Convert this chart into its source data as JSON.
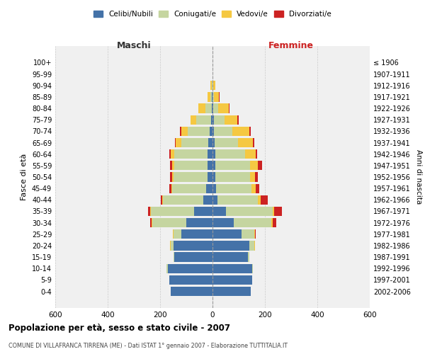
{
  "age_groups": [
    "0-4",
    "5-9",
    "10-14",
    "15-19",
    "20-24",
    "25-29",
    "30-34",
    "35-39",
    "40-44",
    "45-49",
    "50-54",
    "55-59",
    "60-64",
    "65-69",
    "70-74",
    "75-79",
    "80-84",
    "85-89",
    "90-94",
    "95-99",
    "100+"
  ],
  "birth_years": [
    "2002-2006",
    "1997-2001",
    "1992-1996",
    "1987-1991",
    "1982-1986",
    "1977-1981",
    "1972-1976",
    "1967-1971",
    "1962-1966",
    "1957-1961",
    "1952-1956",
    "1947-1951",
    "1942-1946",
    "1937-1941",
    "1932-1936",
    "1927-1931",
    "1922-1926",
    "1917-1921",
    "1912-1916",
    "1907-1911",
    "≤ 1906"
  ],
  "colors": {
    "celibi": "#4472a8",
    "coniugati": "#c5d5a0",
    "vedovi": "#f5c842",
    "divorziati": "#cc2222"
  },
  "maschi": {
    "celibi": [
      160,
      165,
      170,
      145,
      150,
      120,
      100,
      70,
      35,
      25,
      20,
      20,
      20,
      15,
      10,
      6,
      3,
      2,
      1,
      0,
      0
    ],
    "coniugati": [
      0,
      0,
      5,
      5,
      10,
      30,
      130,
      165,
      155,
      130,
      130,
      125,
      125,
      105,
      85,
      55,
      25,
      5,
      2,
      0,
      0
    ],
    "vedovi": [
      0,
      0,
      0,
      0,
      1,
      1,
      2,
      2,
      3,
      3,
      5,
      8,
      15,
      20,
      25,
      22,
      25,
      12,
      5,
      1,
      0
    ],
    "divorziati": [
      0,
      0,
      0,
      0,
      0,
      0,
      5,
      8,
      3,
      8,
      8,
      10,
      5,
      4,
      3,
      2,
      2,
      0,
      0,
      0,
      0
    ]
  },
  "femmine": {
    "celibi": [
      145,
      150,
      150,
      135,
      140,
      110,
      80,
      50,
      18,
      14,
      12,
      12,
      10,
      8,
      6,
      5,
      2,
      1,
      0,
      0,
      0
    ],
    "coniugati": [
      0,
      0,
      5,
      5,
      20,
      50,
      145,
      180,
      155,
      135,
      130,
      130,
      115,
      90,
      70,
      40,
      20,
      4,
      2,
      0,
      0
    ],
    "vedovi": [
      0,
      0,
      0,
      0,
      2,
      2,
      5,
      5,
      12,
      15,
      20,
      30,
      40,
      55,
      65,
      50,
      40,
      20,
      8,
      1,
      0
    ],
    "divorziati": [
      0,
      0,
      0,
      0,
      0,
      2,
      12,
      30,
      25,
      15,
      10,
      18,
      6,
      6,
      5,
      4,
      2,
      2,
      0,
      0,
      0
    ]
  },
  "title": "Popolazione per età, sesso e stato civile - 2007",
  "subtitle": "COMUNE DI VILLAFRANCA TIRRENA (ME) - Dati ISTAT 1° gennaio 2007 - Elaborazione TUTTITALIA.IT",
  "xlabel_left": "Maschi",
  "xlabel_right": "Femmine",
  "ylabel_left": "Fasce di età",
  "ylabel_right": "Anni di nascita",
  "xlim": 600,
  "legend_labels": [
    "Celibi/Nubili",
    "Coniugati/e",
    "Vedovi/e",
    "Divorziati/e"
  ],
  "bg_color": "#f0f0f0",
  "grid_color": "#cccccc"
}
